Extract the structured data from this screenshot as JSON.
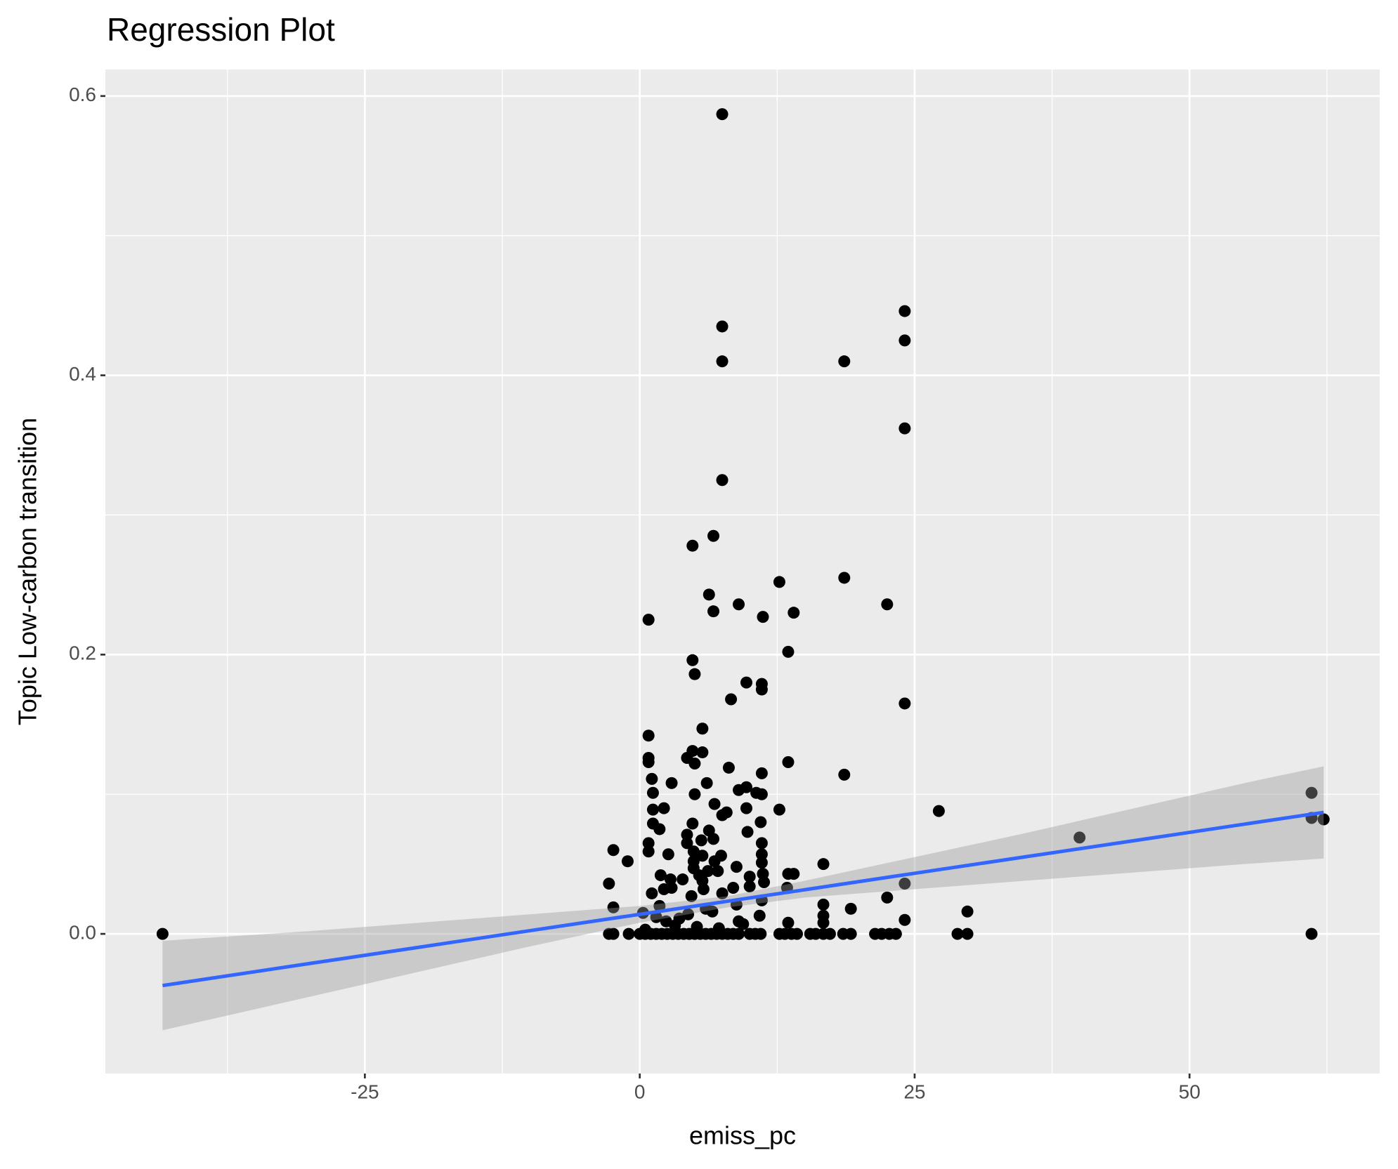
{
  "chart_data": {
    "type": "scatter",
    "title": "Regression Plot",
    "xlabel": "emiss_pc",
    "ylabel": "Topic Low-carbon transition",
    "xlim": [
      -48.6,
      67.3
    ],
    "ylim": [
      -0.1,
      0.619
    ],
    "xticks": [
      -25,
      0,
      25,
      50
    ],
    "yticks": [
      {
        "value": 0,
        "label": "0.0"
      },
      0.2,
      0.4,
      0.6
    ],
    "minor_xticks": [
      -37.5,
      -12.5,
      12.5,
      37.5,
      62.5
    ],
    "minor_yticks": [
      0.1,
      0.3,
      0.5
    ],
    "grid": true,
    "color": "#000000",
    "x": [
      -43.4,
      7.5,
      7.5,
      7.5,
      18.6,
      24.1,
      24.1,
      24.1,
      7.5,
      6.7,
      4.8,
      12.7,
      18.6,
      6.3,
      6.7,
      9.0,
      11.2,
      14.0,
      22.5,
      0.8,
      13.5,
      4.8,
      5.0,
      9.7,
      11.1,
      11.1,
      8.3,
      24.1,
      5.7,
      0.8,
      4.8,
      5.7,
      4.3,
      0.8,
      0.8,
      5.0,
      13.5,
      8.1,
      11.1,
      18.6,
      1.1,
      2.9,
      6.1,
      9.7,
      9.0,
      1.2,
      5.0,
      10.6,
      11.1,
      61.1,
      6.8,
      2.2,
      1.2,
      9.7,
      12.7,
      27.2,
      7.9,
      7.5,
      61.1,
      62.2,
      1.2,
      4.8,
      11.0,
      1.8,
      6.3,
      4.3,
      9.8,
      6.7,
      40.0,
      0.8,
      4.3,
      5.6,
      11.1,
      -2.4,
      0.8,
      2.6,
      4.9,
      5.7,
      7.4,
      11.1,
      -1.1,
      4.9,
      6.8,
      11.1,
      16.7,
      4.9,
      8.8,
      6.2,
      1.9,
      5.4,
      7.1,
      11.2,
      13.5,
      14.0,
      10.0,
      2.8,
      3.9,
      5.7,
      -2.8,
      24.1,
      10.0,
      11.3,
      8.5,
      2.2,
      2.9,
      5.8,
      13.4,
      1.1,
      4.7,
      7.5,
      22.5,
      -2.4,
      11.1,
      16.7,
      19.2,
      1.8,
      29.8,
      0.3,
      16.7,
      10.9,
      24.1,
      16.7,
      13.5,
      9.0,
      1.5,
      3.2,
      4.4,
      6.0,
      7.2,
      8.8,
      2.4,
      5.2,
      0.5,
      3.6,
      6.6,
      9.4,
      -2.8,
      -2.4,
      -1.0,
      0.0,
      0.5,
      1.0,
      1.5,
      2.0,
      2.5,
      3.0,
      3.5,
      4.0,
      4.5,
      5.0,
      5.5,
      6.0,
      6.5,
      7.0,
      7.5,
      8.0,
      8.5,
      9.0,
      10.0,
      10.5,
      11.0,
      12.7,
      13.2,
      13.8,
      14.3,
      15.5,
      16.0,
      16.7,
      17.3,
      18.5,
      19.2,
      21.4,
      22.0,
      22.7,
      23.3,
      28.9,
      29.8,
      61.1
    ],
    "y": [
      0,
      0.587,
      0.435,
      0.41,
      0.41,
      0.446,
      0.425,
      0.362,
      0.325,
      0.285,
      0.278,
      0.252,
      0.255,
      0.243,
      0.231,
      0.236,
      0.227,
      0.23,
      0.236,
      0.225,
      0.202,
      0.196,
      0.186,
      0.18,
      0.179,
      0.175,
      0.168,
      0.165,
      0.147,
      0.142,
      0.131,
      0.13,
      0.126,
      0.126,
      0.123,
      0.122,
      0.123,
      0.119,
      0.115,
      0.114,
      0.111,
      0.108,
      0.108,
      0.105,
      0.103,
      0.101,
      0.1,
      0.101,
      0.1,
      0.101,
      0.093,
      0.09,
      0.089,
      0.09,
      0.089,
      0.088,
      0.087,
      0.085,
      0.083,
      0.082,
      0.079,
      0.079,
      0.08,
      0.075,
      0.074,
      0.071,
      0.073,
      0.068,
      0.069,
      0.065,
      0.065,
      0.067,
      0.065,
      0.06,
      0.059,
      0.057,
      0.059,
      0.056,
      0.056,
      0.057,
      0.052,
      0.052,
      0.052,
      0.051,
      0.05,
      0.047,
      0.048,
      0.045,
      0.042,
      0.042,
      0.045,
      0.043,
      0.043,
      0.043,
      0.041,
      0.039,
      0.039,
      0.038,
      0.036,
      0.036,
      0.034,
      0.037,
      0.033,
      0.032,
      0.033,
      0.032,
      0.033,
      0.029,
      0.027,
      0.029,
      0.026,
      0.019,
      0.024,
      0.021,
      0.018,
      0.02,
      0.016,
      0.015,
      0.013,
      0.013,
      0.01,
      0.008,
      0.008,
      0.009,
      0.012,
      0.006,
      0.014,
      0.018,
      0.004,
      0.021,
      0.009,
      0.005,
      0.003,
      0.011,
      0.016,
      0.007,
      0,
      0,
      0,
      0,
      0,
      0,
      0,
      0,
      0,
      0,
      0,
      0,
      0,
      0,
      0,
      0,
      0,
      0,
      0,
      0,
      0,
      0,
      0,
      0,
      0,
      0,
      0,
      0,
      0,
      0,
      0,
      0,
      0,
      0,
      0,
      0,
      0,
      0,
      0,
      0,
      0,
      0
    ],
    "fit": {
      "color": "#3366ff",
      "band_color": "#999999",
      "x": [
        -43.4,
        -30,
        -20,
        -10,
        0,
        8,
        15,
        25,
        35,
        45,
        55,
        62.2
      ],
      "y": [
        -0.037,
        -0.0212,
        -0.0095,
        0.0023,
        0.014,
        0.0234,
        0.0316,
        0.0434,
        0.0551,
        0.0668,
        0.0786,
        0.087
      ],
      "ymin": [
        -0.069,
        -0.045,
        -0.027,
        -0.009,
        0.008,
        0.019,
        0.026,
        0.032,
        0.038,
        0.044,
        0.05,
        0.054
      ],
      "ymax": [
        -0.005,
        0.002,
        0.008,
        0.014,
        0.02,
        0.027,
        0.038,
        0.055,
        0.072,
        0.09,
        0.108,
        0.12
      ]
    }
  }
}
